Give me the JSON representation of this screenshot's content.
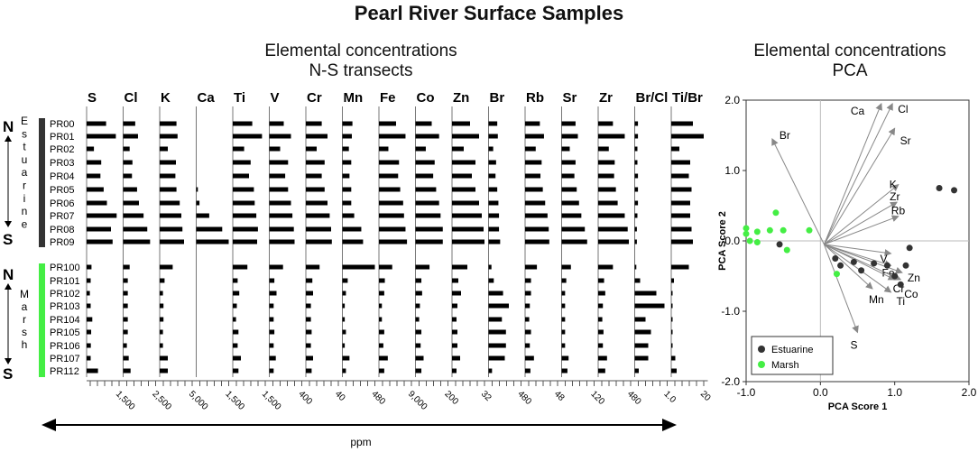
{
  "title": "Pearl River Surface Samples",
  "left_panel": {
    "title_line1": "Elemental concentrations",
    "title_line2": "N-S transects",
    "unit_label": "ppm",
    "north": "N",
    "south": "S",
    "estuarine_letters": [
      "E",
      "s",
      "t",
      "u",
      "a",
      "r",
      "i",
      "n",
      "e"
    ],
    "marsh_letters": [
      "M",
      "a",
      "r",
      "s",
      "h"
    ]
  },
  "right_panel": {
    "title_line1": "Elemental concentrations",
    "title_line2": "PCA"
  },
  "colors": {
    "estuarine": "#333333",
    "marsh": "#44ee44",
    "bar": "#000000",
    "arrow": "#888888"
  },
  "chart_data": [
    {
      "type": "bar",
      "orientation": "horizontal",
      "samples": [
        "PR00",
        "PR01",
        "PR02",
        "PR03",
        "PR04",
        "PR05",
        "PR06",
        "PR07",
        "PR08",
        "PR09",
        "PR100",
        "PR101",
        "PR102",
        "PR103",
        "PR104",
        "PR105",
        "PR106",
        "PR107",
        "PR112"
      ],
      "groups": [
        {
          "name": "Estuarine",
          "samples": [
            "PR00",
            "PR01",
            "PR02",
            "PR03",
            "PR04",
            "PR05",
            "PR06",
            "PR07",
            "PR08",
            "PR09"
          ]
        },
        {
          "name": "Marsh",
          "samples": [
            "PR100",
            "PR101",
            "PR102",
            "PR103",
            "PR104",
            "PR105",
            "PR106",
            "PR107",
            "PR112"
          ]
        }
      ],
      "panels": [
        {
          "label": "S",
          "tick_label": "1,500",
          "max": 2000,
          "values": [
            1200,
            1800,
            450,
            900,
            850,
            1050,
            1250,
            1850,
            1500,
            1600,
            300,
            250,
            200,
            250,
            350,
            280,
            260,
            250,
            700
          ]
        },
        {
          "label": "Cl",
          "tick_label": "2,500",
          "max": 3500,
          "values": [
            1300,
            1600,
            700,
            1000,
            950,
            1500,
            1700,
            2200,
            2600,
            2900,
            700,
            500,
            500,
            500,
            500,
            500,
            400,
            600,
            800
          ]
        },
        {
          "label": "K",
          "tick_label": "5,000",
          "max": 6000,
          "values": [
            3100,
            3300,
            1500,
            3000,
            2900,
            3100,
            3700,
            4000,
            4200,
            4500,
            2400,
            900,
            600,
            700,
            700,
            600,
            600,
            1500,
            1500
          ]
        },
        {
          "label": "Ca",
          "tick_label": "1,500",
          "max": 2000,
          "values": [
            0,
            0,
            0,
            0,
            0,
            100,
            200,
            800,
            1600,
            2000,
            0,
            0,
            0,
            0,
            0,
            0,
            0,
            0,
            0
          ]
        },
        {
          "label": "Ti",
          "tick_label": "1,500",
          "max": 2000,
          "values": [
            1200,
            1800,
            700,
            1100,
            1000,
            1300,
            1350,
            1450,
            1550,
            1500,
            900,
            300,
            400,
            250,
            200,
            350,
            300,
            500,
            350
          ]
        },
        {
          "label": "V",
          "tick_label": "400",
          "max": 450,
          "values": [
            200,
            300,
            150,
            260,
            220,
            260,
            300,
            320,
            340,
            350,
            190,
            70,
            100,
            60,
            60,
            70,
            60,
            90,
            60
          ]
        },
        {
          "label": "Cr",
          "tick_label": "40",
          "max": 45,
          "values": [
            22,
            30,
            15,
            26,
            22,
            26,
            30,
            33,
            35,
            36,
            19,
            9,
            10,
            7,
            7,
            8,
            7,
            10,
            8
          ]
        },
        {
          "label": "Mn",
          "tick_label": "480",
          "max": 550,
          "values": [
            170,
            160,
            110,
            150,
            120,
            150,
            150,
            200,
            320,
            350,
            550,
            90,
            60,
            40,
            40,
            60,
            40,
            120,
            60
          ]
        },
        {
          "label": "Fe",
          "tick_label": "9,000",
          "max": 11000,
          "values": [
            5800,
            9000,
            3200,
            6800,
            6500,
            7200,
            8200,
            8500,
            9000,
            9500,
            4500,
            2000,
            1800,
            1000,
            1000,
            1800,
            1500,
            3000,
            1800
          ]
        },
        {
          "label": "Co",
          "tick_label": "200",
          "max": 220,
          "values": [
            110,
            160,
            70,
            130,
            120,
            140,
            160,
            170,
            185,
            185,
            95,
            40,
            45,
            30,
            25,
            40,
            35,
            55,
            40
          ]
        },
        {
          "label": "Zn",
          "tick_label": "32",
          "max": 36,
          "values": [
            20,
            30,
            13,
            26,
            22,
            26,
            30,
            33,
            35,
            36,
            17,
            7,
            10,
            6,
            5,
            6,
            6,
            9,
            5
          ]
        },
        {
          "label": "Br",
          "tick_label": "480",
          "max": 560,
          "values": [
            150,
            160,
            80,
            130,
            120,
            150,
            170,
            180,
            180,
            200,
            50,
            90,
            250,
            350,
            230,
            300,
            300,
            280,
            60
          ]
        },
        {
          "label": "Rb",
          "tick_label": "48",
          "max": 55,
          "values": [
            25,
            32,
            18,
            28,
            26,
            30,
            34,
            38,
            40,
            41,
            20,
            10,
            10,
            8,
            7,
            10,
            8,
            15,
            9
          ]
        },
        {
          "label": "Sr",
          "tick_label": "120",
          "max": 140,
          "values": [
            60,
            70,
            35,
            60,
            55,
            65,
            75,
            85,
            100,
            110,
            40,
            20,
            15,
            15,
            15,
            15,
            15,
            30,
            25
          ]
        },
        {
          "label": "Zr",
          "tick_label": "480",
          "max": 550,
          "values": [
            250,
            450,
            180,
            280,
            270,
            300,
            330,
            450,
            500,
            520,
            250,
            100,
            120,
            80,
            70,
            90,
            80,
            150,
            120
          ]
        },
        {
          "label": "Br/Cl",
          "tick_label": "1.0",
          "max": 1.2,
          "values": [
            0.12,
            0.12,
            0.1,
            0.1,
            0.12,
            0.12,
            0.12,
            0.1,
            0.08,
            0.08,
            0.06,
            0.2,
            0.8,
            1.1,
            0.4,
            0.6,
            0.5,
            0.5,
            0.15
          ]
        },
        {
          "label": "Ti/Br",
          "tick_label": "20",
          "max": 24,
          "values": [
            16,
            24,
            6,
            14,
            13,
            15,
            14,
            14,
            15,
            16,
            13,
            2,
            1,
            1,
            1,
            1,
            1,
            3,
            4
          ]
        }
      ],
      "xlabel": "ppm"
    },
    {
      "type": "scatter",
      "xlabel": "PCA Score 1",
      "ylabel": "PCA Score 2",
      "xlim": [
        -1.0,
        2.0
      ],
      "ylim": [
        -2.0,
        2.0
      ],
      "x_ticks": [
        "-1.0",
        "0.0",
        "1.0",
        "2.0"
      ],
      "y_ticks": [
        "-2.0",
        "-1.0",
        "0.0",
        "1.0",
        "2.0"
      ],
      "legend": "bottom-left",
      "series": [
        {
          "name": "Estuarine",
          "color": "#333333",
          "points": [
            [
              0.2,
              -0.25
            ],
            [
              0.27,
              -0.35
            ],
            [
              0.45,
              -0.3
            ],
            [
              0.55,
              -0.42
            ],
            [
              0.72,
              -0.32
            ],
            [
              0.9,
              -0.35
            ],
            [
              1.0,
              -0.5
            ],
            [
              1.08,
              -0.62
            ],
            [
              1.15,
              -0.35
            ],
            [
              1.2,
              -0.1
            ],
            [
              1.6,
              0.75
            ],
            [
              1.8,
              0.72
            ],
            [
              -0.55,
              -0.05
            ]
          ]
        },
        {
          "name": "Marsh",
          "color": "#44ee44",
          "points": [
            [
              -1.0,
              0.18
            ],
            [
              -1.0,
              0.1
            ],
            [
              -0.95,
              0.0
            ],
            [
              -0.85,
              0.13
            ],
            [
              -0.85,
              -0.02
            ],
            [
              -0.68,
              0.15
            ],
            [
              -0.6,
              0.4
            ],
            [
              -0.5,
              0.15
            ],
            [
              -0.45,
              -0.13
            ],
            [
              -0.15,
              0.15
            ],
            [
              0.22,
              -0.47
            ]
          ]
        }
      ],
      "loadings": [
        {
          "label": "Br",
          "x": -0.65,
          "y": 1.45
        },
        {
          "label": "Ca",
          "x": 0.82,
          "y": 1.95
        },
        {
          "label": "Cl",
          "x": 0.97,
          "y": 1.95
        },
        {
          "label": "Sr",
          "x": 1.0,
          "y": 1.6
        },
        {
          "label": "K",
          "x": 1.05,
          "y": 0.8
        },
        {
          "label": "Zr",
          "x": 1.03,
          "y": 0.55
        },
        {
          "label": "Rb",
          "x": 1.05,
          "y": 0.35
        },
        {
          "label": "V",
          "x": 0.95,
          "y": -0.18
        },
        {
          "label": "Fe",
          "x": 0.95,
          "y": -0.35
        },
        {
          "label": "Zn",
          "x": 1.1,
          "y": -0.45
        },
        {
          "label": "Cr",
          "x": 1.0,
          "y": -0.55
        },
        {
          "label": "Co",
          "x": 1.08,
          "y": -0.55
        },
        {
          "label": "Ti",
          "x": 0.95,
          "y": -0.73
        },
        {
          "label": "Mn",
          "x": 0.7,
          "y": -0.68
        },
        {
          "label": "S",
          "x": 0.5,
          "y": -1.3
        }
      ]
    }
  ]
}
